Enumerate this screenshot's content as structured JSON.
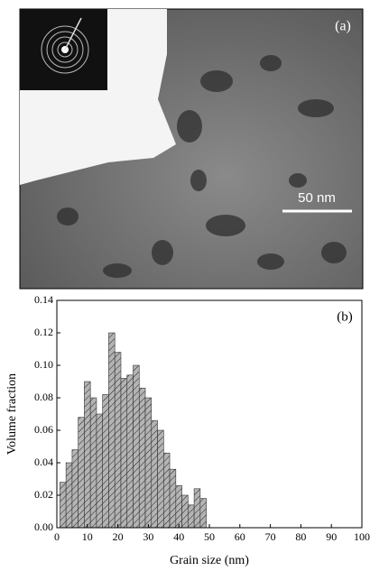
{
  "image": {
    "panel_label": "(a)",
    "scale_bar": "50 nm"
  },
  "chart_data": {
    "type": "histogram",
    "panel_label": "(b)",
    "x_label": "Grain size (nm)",
    "y_label": "Volume fraction",
    "bins": [
      1,
      3,
      5,
      7,
      9,
      11,
      13,
      15,
      17,
      19,
      21,
      23,
      25,
      27,
      29,
      31,
      33,
      35,
      37,
      39,
      41,
      43,
      45,
      47,
      49
    ],
    "values": [
      0.028,
      0.04,
      0.048,
      0.068,
      0.09,
      0.08,
      0.07,
      0.082,
      0.12,
      0.108,
      0.092,
      0.094,
      0.1,
      0.086,
      0.08,
      0.066,
      0.06,
      0.046,
      0.036,
      0.026,
      0.02,
      0.014,
      0.024,
      0.018
    ],
    "color": "#b4b4b4",
    "xlim": [
      0,
      100
    ],
    "xticks": [
      0,
      10,
      20,
      30,
      40,
      50,
      60,
      70,
      80,
      90,
      100
    ],
    "ylim": [
      0,
      0.14
    ],
    "yticks": [
      {
        "value": 0,
        "label": "0.00"
      },
      {
        "value": 0.02,
        "label": "0.02"
      },
      {
        "value": 0.04,
        "label": "0.04"
      },
      {
        "value": 0.06,
        "label": "0.06"
      },
      {
        "value": 0.08,
        "label": "0.08"
      },
      {
        "value": 0.1,
        "label": "0.10"
      },
      {
        "value": 0.12,
        "label": "0.12"
      },
      {
        "value": 0.14,
        "label": "0.14"
      }
    ]
  }
}
